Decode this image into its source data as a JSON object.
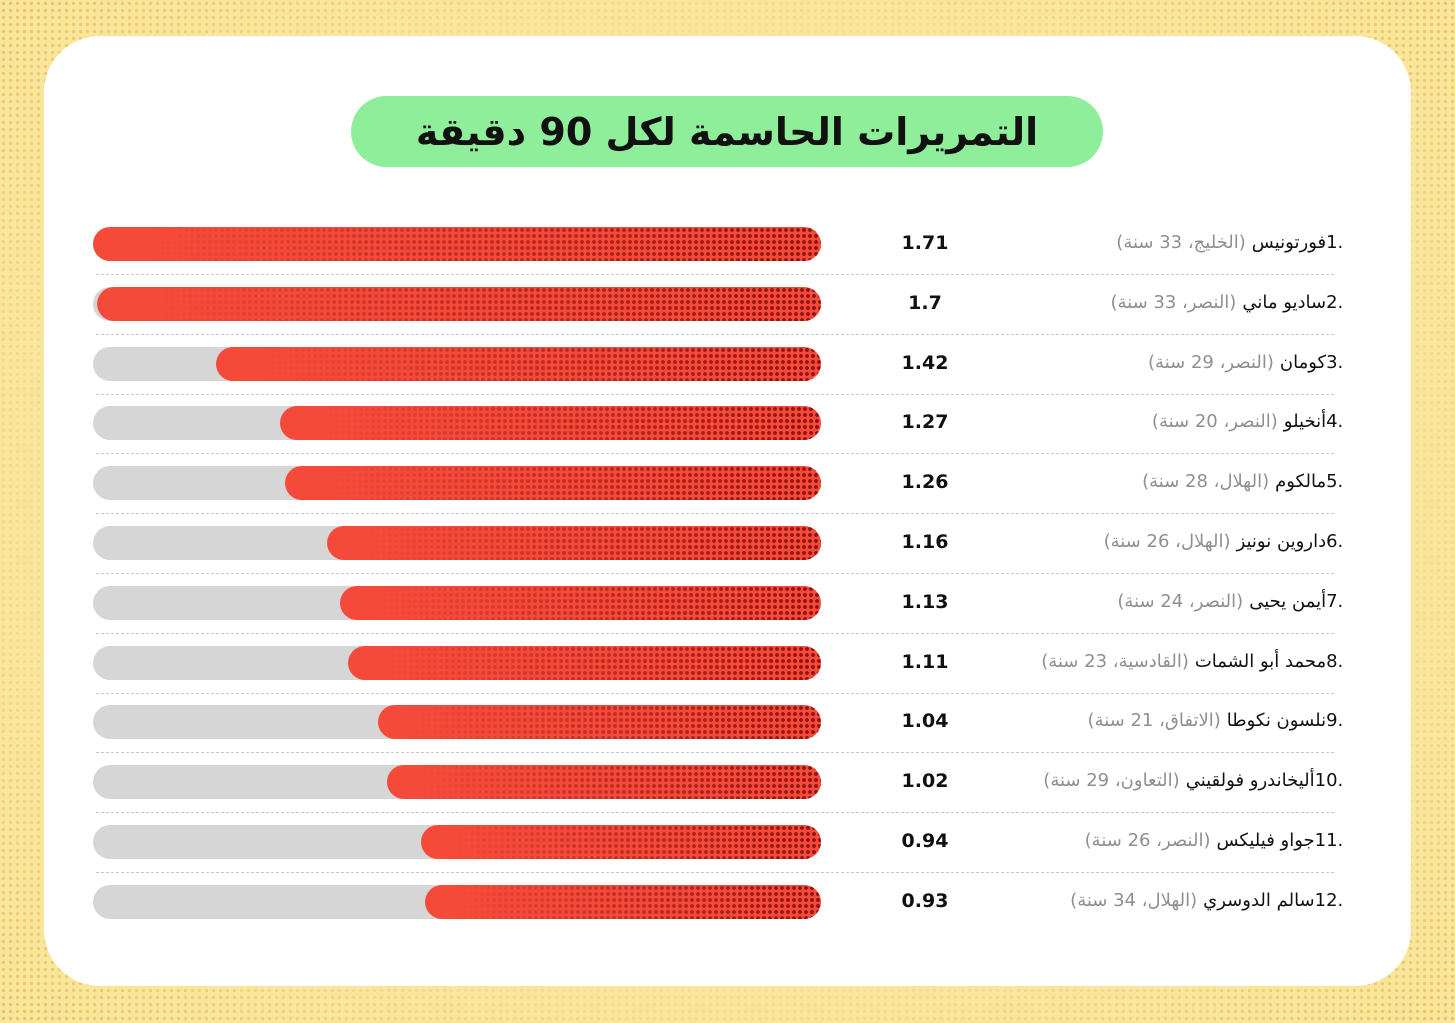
{
  "chart_data": {
    "type": "bar",
    "title": "التمريرات الحاسمة لكل 90 دقيقة",
    "xlim": [
      0,
      1.71
    ],
    "colors": {
      "fill": "#f54a3a",
      "fill_dark": "#8e1212",
      "track": "#d6d6d6",
      "title_bg": "#8eee9a"
    },
    "rows": [
      {
        "rank": "1.",
        "name": "فورتونيس",
        "team": "(الخليج، 33 سنة)",
        "value": 1.71,
        "value_label": "1.71"
      },
      {
        "rank": "2.",
        "name": "ساديو ماني",
        "team": "(النصر، 33 سنة)",
        "value": 1.7,
        "value_label": "1.7"
      },
      {
        "rank": "3.",
        "name": "كومان",
        "team": "(النصر، 29 سنة)",
        "value": 1.42,
        "value_label": "1.42"
      },
      {
        "rank": "4.",
        "name": "أنخيلو",
        "team": "(النصر، 20 سنة)",
        "value": 1.27,
        "value_label": "1.27"
      },
      {
        "rank": "5.",
        "name": "مالكوم",
        "team": "(الهلال، 28 سنة)",
        "value": 1.26,
        "value_label": "1.26"
      },
      {
        "rank": "6.",
        "name": "داروين نونيز",
        "team": "(الهلال، 26 سنة)",
        "value": 1.16,
        "value_label": "1.16"
      },
      {
        "rank": "7.",
        "name": "أيمن يحيى",
        "team": "(النصر، 24 سنة)",
        "value": 1.13,
        "value_label": "1.13"
      },
      {
        "rank": "8.",
        "name": "محمد أبو الشمات",
        "team": "(القادسية، 23 سنة)",
        "value": 1.11,
        "value_label": "1.11"
      },
      {
        "rank": "9.",
        "name": "نلسون نكوطا",
        "team": "(الاتفاق، 21 سنة)",
        "value": 1.04,
        "value_label": "1.04"
      },
      {
        "rank": "10.",
        "name": "أليخاندرو فولقيني",
        "team": "(التعاون، 29 سنة)",
        "value": 1.02,
        "value_label": "1.02"
      },
      {
        "rank": "11.",
        "name": "جواو فيليكس",
        "team": "(النصر، 26 سنة)",
        "value": 0.94,
        "value_label": "0.94"
      },
      {
        "rank": "12.",
        "name": "سالم الدوسري",
        "team": "(الهلال، 34 سنة)",
        "value": 0.93,
        "value_label": "0.93"
      }
    ]
  }
}
